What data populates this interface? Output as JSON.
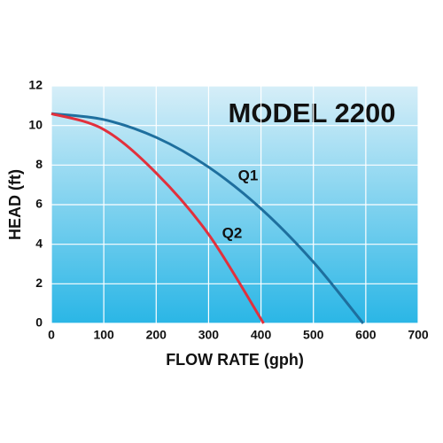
{
  "chart_data": {
    "type": "line",
    "title": "MODEL 2200",
    "x_label": "FLOW RATE (gph)",
    "y_label": "HEAD (ft)",
    "xlim": [
      0,
      700
    ],
    "xticks": [
      0,
      100,
      200,
      300,
      400,
      500,
      600,
      700
    ],
    "ylim": [
      0,
      12
    ],
    "yticks": [
      0,
      2,
      4,
      6,
      8,
      10,
      12
    ],
    "grid": true,
    "series": [
      {
        "name": "Q1",
        "color": "#1e6f9e",
        "x": [
          0,
          100,
          200,
          300,
          400,
          500,
          595
        ],
        "values": [
          10.6,
          10.3,
          9.4,
          7.9,
          5.8,
          3.1,
          0
        ]
      },
      {
        "name": "Q2",
        "color": "#e2303c",
        "x": [
          0,
          100,
          200,
          300,
          405
        ],
        "values": [
          10.6,
          9.8,
          7.6,
          4.5,
          0
        ]
      }
    ]
  }
}
